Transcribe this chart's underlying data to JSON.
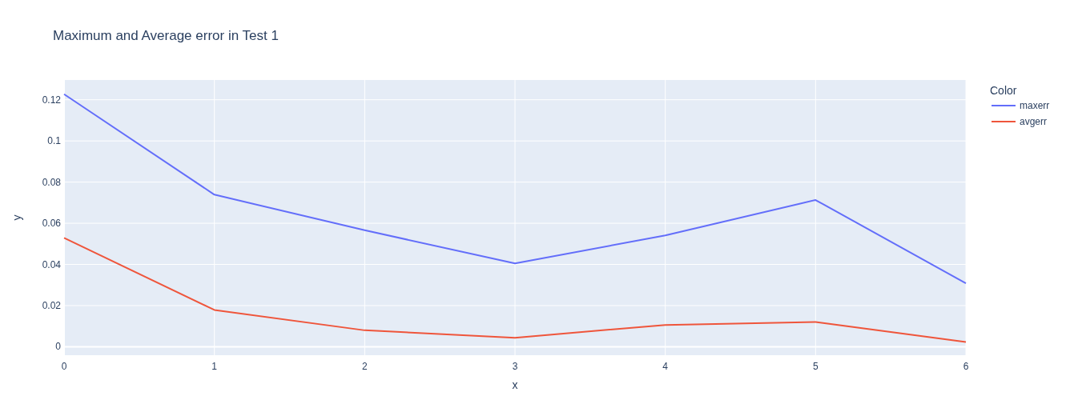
{
  "chart_data": {
    "type": "line",
    "title": "Maximum and Average error in Test 1",
    "xlabel": "x",
    "ylabel": "y",
    "legend_title": "Color",
    "x": [
      0,
      1,
      2,
      3,
      4,
      5,
      6
    ],
    "series": [
      {
        "name": "maxerr",
        "color": "#636efa",
        "values": [
          0.1227,
          0.0739,
          0.0566,
          0.0405,
          0.0541,
          0.0713,
          0.0308
        ]
      },
      {
        "name": "avgerr",
        "color": "#ef553b",
        "values": [
          0.0529,
          0.0179,
          0.008,
          0.0044,
          0.0106,
          0.012,
          0.0023
        ]
      }
    ],
    "xlim": [
      0,
      6
    ],
    "xticks": [
      0,
      1,
      2,
      3,
      4,
      5,
      6
    ],
    "ylim": [
      -0.0041,
      0.1296
    ],
    "yticks": [
      0,
      0.02,
      0.04,
      0.06,
      0.08,
      0.1,
      0.12
    ],
    "grid": true,
    "legend": "top right"
  }
}
